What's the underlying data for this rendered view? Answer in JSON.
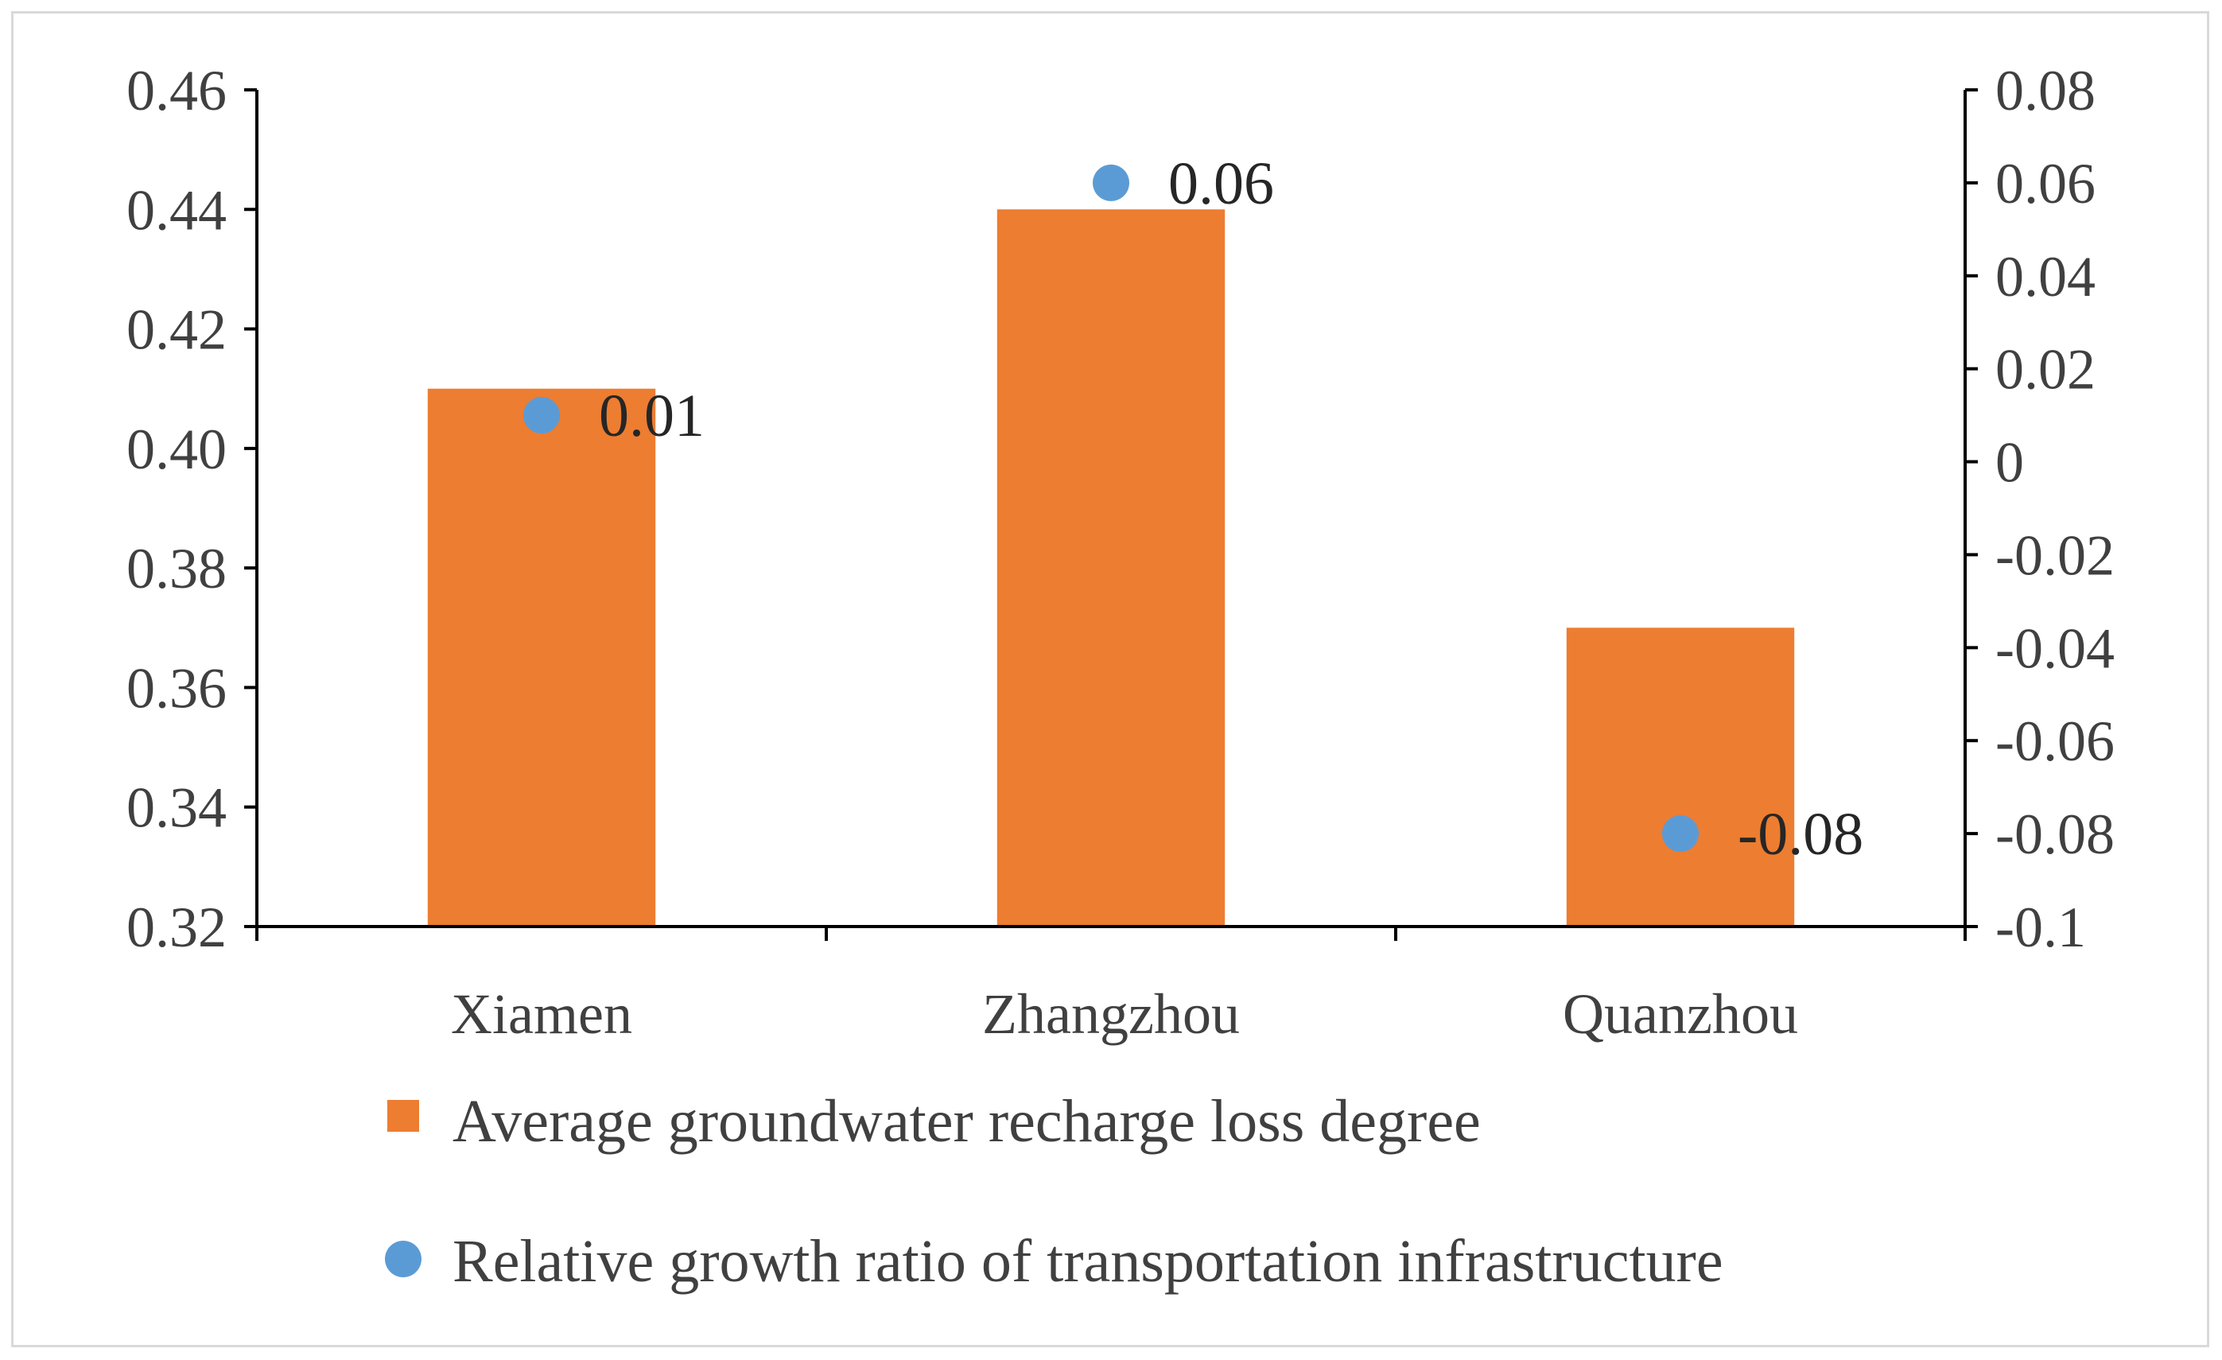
{
  "chart_data": {
    "type": "bar+scatter",
    "categories": [
      "Xiamen",
      "Zhangzhou",
      "Quanzhou"
    ],
    "series": [
      {
        "name": "Average groundwater recharge loss degree",
        "kind": "bar",
        "axis": "left",
        "color": "#ED7D31",
        "values": [
          0.41,
          0.44,
          0.37
        ]
      },
      {
        "name": "Relative growth ratio of transportation infrastructure",
        "kind": "scatter",
        "axis": "right",
        "color": "#5B9BD5",
        "values": [
          0.01,
          0.06,
          -0.08
        ],
        "labels": [
          "0.01",
          "0.06",
          "-0.08"
        ]
      }
    ],
    "y_left": {
      "range": [
        0.32,
        0.46
      ],
      "ticks": [
        "0.32",
        "0.34",
        "0.36",
        "0.38",
        "0.40",
        "0.42",
        "0.44",
        "0.46"
      ]
    },
    "y_right": {
      "range": [
        -0.1,
        0.08
      ],
      "ticks": [
        "-0.1",
        "-0.08",
        "-0.06",
        "-0.04",
        "-0.02",
        "0",
        "0.02",
        "0.04",
        "0.06",
        "0.08"
      ]
    },
    "legend_position": "bottom",
    "grid": false,
    "axis_color": "#000000",
    "frame_color": "#d9d9d9"
  }
}
